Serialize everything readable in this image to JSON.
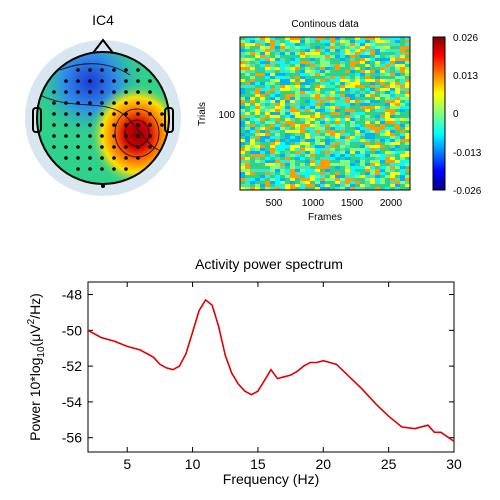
{
  "topomap": {
    "title": "IC4",
    "colors": {
      "hot": "#d40000",
      "cold": "#1c3bd6",
      "neutral": "#2fd28a"
    }
  },
  "continuous": {
    "title": "Continous data",
    "ylabel": "Trials",
    "xlabel": "Frames",
    "y_ticks": [
      "100"
    ],
    "x_ticks": [
      "500",
      "1000",
      "1500",
      "2000"
    ],
    "colorbar_ticks": [
      "0.026",
      "0.013",
      "0",
      "-0.013",
      "-0.026"
    ]
  },
  "chart_data": [
    {
      "type": "heatmap",
      "title": "Continous data",
      "xlabel": "Frames",
      "ylabel": "Trials",
      "xlim": [
        0,
        2450
      ],
      "x_ticks": [
        500,
        1000,
        1500,
        2000
      ],
      "y_ticks": [
        100
      ],
      "clim": [
        -0.026,
        0.026
      ],
      "colorbar_ticks": [
        0.026,
        0.013,
        0,
        -0.013,
        -0.026
      ]
    },
    {
      "type": "line",
      "title": "Activity power spectrum",
      "xlabel": "Frequency (Hz)",
      "ylabel_parts": {
        "a": "Power 10*log",
        "sub": "10",
        "b": "(μV",
        "sup": "2",
        "c": "/Hz)"
      },
      "xlim": [
        2,
        30
      ],
      "ylim": [
        -56.8,
        -47.3
      ],
      "x_ticks": [
        5,
        10,
        15,
        20,
        25,
        30
      ],
      "y_ticks": [
        -48,
        -50,
        -52,
        -54,
        -56
      ],
      "line_color": "#e00000",
      "x": [
        2,
        3,
        4,
        5,
        6,
        7,
        7.5,
        8,
        8.5,
        9,
        9.5,
        10,
        10.5,
        11,
        11.5,
        12,
        12.5,
        13,
        13.5,
        14,
        14.5,
        15,
        15.5,
        16,
        16.5,
        17,
        17.5,
        18,
        18.5,
        19,
        19.5,
        20,
        21,
        22,
        23,
        24,
        25,
        26,
        27,
        28,
        28.5,
        29,
        30
      ],
      "y": [
        -50.0,
        -50.4,
        -50.6,
        -50.9,
        -51.1,
        -51.5,
        -51.9,
        -52.1,
        -52.2,
        -52.0,
        -51.3,
        -50.1,
        -48.9,
        -48.3,
        -48.6,
        -49.8,
        -51.4,
        -52.4,
        -53.0,
        -53.4,
        -53.6,
        -53.4,
        -52.8,
        -52.2,
        -52.7,
        -52.6,
        -52.5,
        -52.3,
        -52.0,
        -51.8,
        -51.8,
        -51.7,
        -51.9,
        -52.6,
        -53.3,
        -54.1,
        -54.8,
        -55.4,
        -55.5,
        -55.3,
        -55.7,
        -55.7,
        -56.2
      ]
    }
  ]
}
